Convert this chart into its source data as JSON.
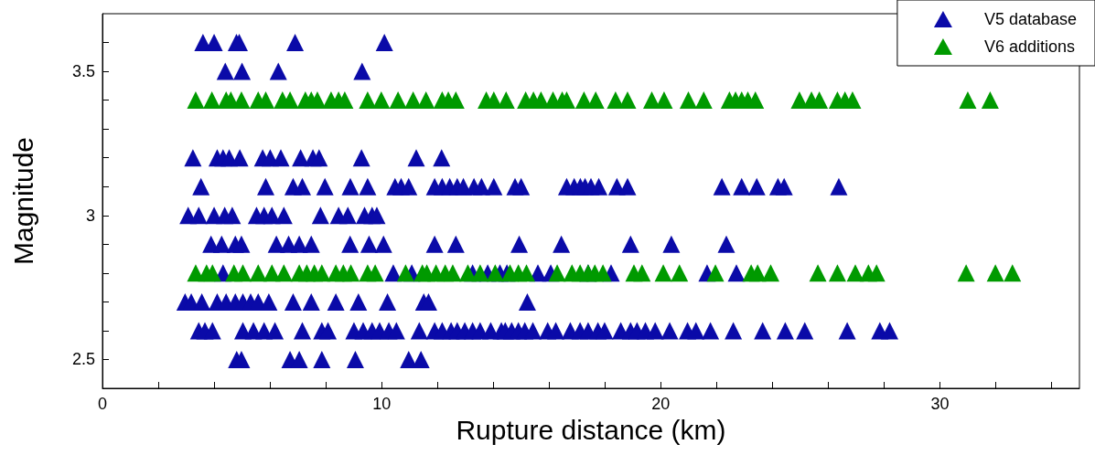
{
  "chart_data": {
    "type": "scatter",
    "xlabel": "Rupture distance (km)",
    "ylabel": "Magnitude",
    "xlim": [
      0,
      35
    ],
    "ylim": [
      2.4,
      3.7
    ],
    "xticks": [
      0,
      {
        "value": 2,
        "label": null
      },
      {
        "value": 4,
        "label": null
      },
      {
        "value": 6,
        "label": null
      },
      {
        "value": 8,
        "label": null
      },
      10,
      {
        "value": 12,
        "label": null
      },
      {
        "value": 14,
        "label": null
      },
      {
        "value": 16,
        "label": null
      },
      {
        "value": 18,
        "label": null
      },
      20,
      {
        "value": 22,
        "label": null
      },
      {
        "value": 24,
        "label": null
      },
      {
        "value": 26,
        "label": null
      },
      {
        "value": 28,
        "label": null
      },
      30,
      {
        "value": 32,
        "label": null
      },
      {
        "value": 34,
        "label": null
      }
    ],
    "yticks": [
      2.5,
      {
        "value": 2.6,
        "label": null
      },
      {
        "value": 2.7,
        "label": null
      },
      {
        "value": 2.8,
        "label": null
      },
      {
        "value": 2.9,
        "label": null
      },
      3,
      {
        "value": 3.1,
        "label": null
      },
      {
        "value": 3.2,
        "label": null
      },
      {
        "value": 3.3,
        "label": null
      },
      {
        "value": 3.4,
        "label": null
      },
      3.5,
      {
        "value": 3.6,
        "label": null
      }
    ],
    "grid": false,
    "legend": "top right",
    "marker": "triangle",
    "series": [
      {
        "name": "V5 database",
        "color": "#0a0aa8",
        "x": [
          3.6,
          4.0,
          4.8,
          4.9,
          6.9,
          10.1,
          4.4,
          5.0,
          6.3,
          9.3,
          3.24,
          4.11,
          4.32,
          4.54,
          4.92,
          5.74,
          6.01,
          6.39,
          7.1,
          7.54,
          7.76,
          9.28,
          11.24,
          12.15,
          3.53,
          5.85,
          6.83,
          7.16,
          7.97,
          8.88,
          9.5,
          10.48,
          10.7,
          10.97,
          11.9,
          12.17,
          12.44,
          12.71,
          12.93,
          13.31,
          13.58,
          14.02,
          14.78,
          15.0,
          16.63,
          16.9,
          17.12,
          17.29,
          17.5,
          17.78,
          18.43,
          18.81,
          22.19,
          22.9,
          23.44,
          24.2,
          24.42,
          26.38,
          3.07,
          3.45,
          4.0,
          4.38,
          4.65,
          5.52,
          5.79,
          6.07,
          6.5,
          7.81,
          8.46,
          8.79,
          9.39,
          9.66,
          9.83,
          3.89,
          4.27,
          4.76,
          4.98,
          6.23,
          6.67,
          7.05,
          7.48,
          8.87,
          9.55,
          10.07,
          11.9,
          12.66,
          14.93,
          16.44,
          18.92,
          20.38,
          22.35,
          4.32,
          10.42,
          11.08,
          13.26,
          13.8,
          14.24,
          14.49,
          15.6,
          16.06,
          17.4,
          18.22,
          21.66,
          22.71,
          2.96,
          3.18,
          3.56,
          4.11,
          4.43,
          4.76,
          5.03,
          5.31,
          5.58,
          5.96,
          6.83,
          7.48,
          8.36,
          9.17,
          10.21,
          11.51,
          11.68,
          15.22,
          3.45,
          3.67,
          3.94,
          5.03,
          5.41,
          5.79,
          6.18,
          7.16,
          7.86,
          8.08,
          9.01,
          9.34,
          9.66,
          9.93,
          10.26,
          10.53,
          11.35,
          11.9,
          12.17,
          12.49,
          12.71,
          12.98,
          13.26,
          13.53,
          13.91,
          14.29,
          14.43,
          14.66,
          14.9,
          15.13,
          15.42,
          15.95,
          16.24,
          16.76,
          17.11,
          17.4,
          17.75,
          17.99,
          18.57,
          18.92,
          19.15,
          19.45,
          19.8,
          20.32,
          20.96,
          21.26,
          21.78,
          22.6,
          23.65,
          24.46,
          25.16,
          26.68,
          27.85,
          28.2,
          4.81,
          4.98,
          6.72,
          7.05,
          7.86,
          9.06,
          10.97,
          11.41
        ],
        "values": [
          3.6,
          3.6,
          3.6,
          3.6,
          3.6,
          3.6,
          3.5,
          3.5,
          3.5,
          3.5,
          3.2,
          3.2,
          3.2,
          3.2,
          3.2,
          3.2,
          3.2,
          3.2,
          3.2,
          3.2,
          3.2,
          3.2,
          3.2,
          3.2,
          3.1,
          3.1,
          3.1,
          3.1,
          3.1,
          3.1,
          3.1,
          3.1,
          3.1,
          3.1,
          3.1,
          3.1,
          3.1,
          3.1,
          3.1,
          3.1,
          3.1,
          3.1,
          3.1,
          3.1,
          3.1,
          3.1,
          3.1,
          3.1,
          3.1,
          3.1,
          3.1,
          3.1,
          3.1,
          3.1,
          3.1,
          3.1,
          3.1,
          3.1,
          3.0,
          3.0,
          3.0,
          3.0,
          3.0,
          3.0,
          3.0,
          3.0,
          3.0,
          3.0,
          3.0,
          3.0,
          3.0,
          3.0,
          3.0,
          2.9,
          2.9,
          2.9,
          2.9,
          2.9,
          2.9,
          2.9,
          2.9,
          2.9,
          2.9,
          2.9,
          2.9,
          2.9,
          2.9,
          2.9,
          2.9,
          2.9,
          2.9,
          2.8,
          2.8,
          2.8,
          2.8,
          2.8,
          2.8,
          2.8,
          2.8,
          2.8,
          2.8,
          2.8,
          2.8,
          2.8,
          2.7,
          2.7,
          2.7,
          2.7,
          2.7,
          2.7,
          2.7,
          2.7,
          2.7,
          2.7,
          2.7,
          2.7,
          2.7,
          2.7,
          2.7,
          2.7,
          2.7,
          2.7,
          2.6,
          2.6,
          2.6,
          2.6,
          2.6,
          2.6,
          2.6,
          2.6,
          2.6,
          2.6,
          2.6,
          2.6,
          2.6,
          2.6,
          2.6,
          2.6,
          2.6,
          2.6,
          2.6,
          2.6,
          2.6,
          2.6,
          2.6,
          2.6,
          2.6,
          2.6,
          2.6,
          2.6,
          2.6,
          2.6,
          2.6,
          2.6,
          2.6,
          2.6,
          2.6,
          2.6,
          2.6,
          2.6,
          2.6,
          2.6,
          2.6,
          2.6,
          2.6,
          2.6,
          2.6,
          2.6,
          2.6,
          2.6,
          2.6,
          2.6,
          2.6,
          2.6,
          2.6,
          2.6,
          2.5,
          2.5,
          2.5,
          2.5,
          2.5,
          2.5,
          2.5,
          2.5
        ]
      },
      {
        "name": "V6 additions",
        "color": "#009a00",
        "x": [
          3.34,
          3.92,
          4.43,
          4.6,
          4.98,
          5.58,
          5.85,
          6.45,
          6.72,
          7.27,
          7.48,
          7.7,
          8.19,
          8.46,
          8.68,
          9.5,
          9.99,
          10.59,
          11.13,
          11.59,
          12.17,
          12.39,
          12.66,
          13.75,
          14.02,
          14.46,
          15.16,
          15.44,
          15.71,
          16.14,
          16.47,
          16.63,
          17.25,
          17.67,
          18.38,
          18.81,
          19.68,
          20.12,
          20.99,
          21.54,
          22.46,
          22.68,
          22.9,
          23.12,
          23.39,
          24.97,
          25.4,
          25.68,
          26.33,
          26.6,
          26.87,
          31.0,
          31.8,
          3.34,
          3.73,
          3.94,
          4.71,
          5.03,
          5.58,
          6.07,
          6.5,
          7.05,
          7.32,
          7.59,
          7.86,
          8.36,
          8.63,
          8.9,
          9.5,
          9.77,
          10.86,
          11.46,
          11.62,
          11.95,
          12.28,
          12.55,
          13.09,
          13.53,
          14.07,
          14.6,
          14.9,
          15.19,
          16.29,
          16.82,
          17.11,
          17.4,
          17.64,
          17.93,
          19.04,
          19.33,
          20.09,
          20.67,
          21.96,
          23.24,
          23.47,
          23.94,
          25.63,
          26.33,
          26.97,
          27.44,
          27.73,
          30.94,
          31.99,
          32.6
        ],
        "values": [
          3.4,
          3.4,
          3.4,
          3.4,
          3.4,
          3.4,
          3.4,
          3.4,
          3.4,
          3.4,
          3.4,
          3.4,
          3.4,
          3.4,
          3.4,
          3.4,
          3.4,
          3.4,
          3.4,
          3.4,
          3.4,
          3.4,
          3.4,
          3.4,
          3.4,
          3.4,
          3.4,
          3.4,
          3.4,
          3.4,
          3.4,
          3.4,
          3.4,
          3.4,
          3.4,
          3.4,
          3.4,
          3.4,
          3.4,
          3.4,
          3.4,
          3.4,
          3.4,
          3.4,
          3.4,
          3.4,
          3.4,
          3.4,
          3.4,
          3.4,
          3.4,
          3.4,
          3.4,
          2.8,
          2.8,
          2.8,
          2.8,
          2.8,
          2.8,
          2.8,
          2.8,
          2.8,
          2.8,
          2.8,
          2.8,
          2.8,
          2.8,
          2.8,
          2.8,
          2.8,
          2.8,
          2.8,
          2.8,
          2.8,
          2.8,
          2.8,
          2.8,
          2.8,
          2.8,
          2.8,
          2.8,
          2.8,
          2.8,
          2.8,
          2.8,
          2.8,
          2.8,
          2.8,
          2.8,
          2.8,
          2.8,
          2.8,
          2.8,
          2.8,
          2.8,
          2.8,
          2.8,
          2.8,
          2.8,
          2.8,
          2.8,
          2.8,
          2.8,
          2.8
        ]
      }
    ]
  }
}
